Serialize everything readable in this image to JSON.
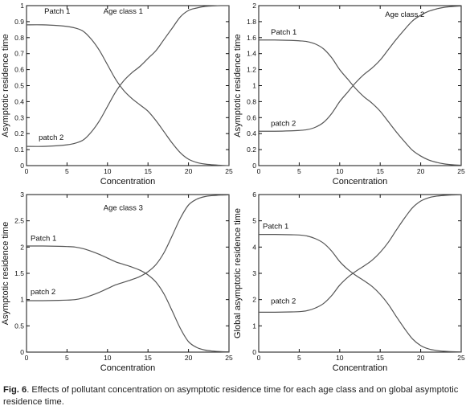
{
  "caption": {
    "label": "Fig. 6",
    "text": ". Effects of pollutant concentration on asymptotic residence time for each age class and on global asymptotic residence time."
  },
  "colors": {
    "line": "#555555",
    "axis": "#111111",
    "background": "#ffffff"
  },
  "chart_data": [
    {
      "type": "line",
      "title": "",
      "xlabel": "Concentration",
      "ylabel": "Asymptotic residence time",
      "xlim": [
        0,
        25
      ],
      "ylim": [
        0,
        1
      ],
      "xticks": [
        "0",
        "5",
        "10",
        "15",
        "20",
        "25"
      ],
      "yticks": [
        "0",
        "0.1",
        "0.2",
        "0.3",
        "0.4",
        "0.5",
        "0.6",
        "0.7",
        "0.8",
        "0.9",
        "1"
      ],
      "annotations": [
        {
          "text": "Patch 1",
          "x": 2.2,
          "y": 0.95
        },
        {
          "text": "Age class 1",
          "x": 9.5,
          "y": 0.95
        },
        {
          "text": "patch 2",
          "x": 1.5,
          "y": 0.16
        }
      ],
      "series": [
        {
          "x": [
            0,
            2,
            4,
            5,
            6,
            7,
            8,
            9,
            10,
            11,
            12,
            13,
            14,
            15,
            16,
            17,
            18,
            19,
            20,
            21,
            22,
            23,
            24,
            25
          ],
          "y": [
            0.88,
            0.88,
            0.875,
            0.87,
            0.86,
            0.84,
            0.79,
            0.72,
            0.63,
            0.54,
            0.47,
            0.42,
            0.38,
            0.34,
            0.28,
            0.21,
            0.14,
            0.08,
            0.04,
            0.02,
            0.01,
            0.005,
            0.002,
            0.0
          ]
        },
        {
          "x": [
            0,
            2,
            4,
            5,
            6,
            7,
            8,
            9,
            10,
            11,
            12,
            13,
            14,
            15,
            16,
            17,
            18,
            19,
            20,
            21,
            22,
            23,
            24,
            25
          ],
          "y": [
            0.12,
            0.12,
            0.125,
            0.13,
            0.14,
            0.16,
            0.21,
            0.28,
            0.37,
            0.46,
            0.53,
            0.58,
            0.62,
            0.67,
            0.72,
            0.79,
            0.86,
            0.93,
            0.97,
            0.985,
            0.995,
            0.998,
            1.0,
            1.0
          ]
        }
      ]
    },
    {
      "type": "line",
      "title": "",
      "xlabel": "Concentration",
      "ylabel": "Asymptotic residence time",
      "xlim": [
        0,
        25
      ],
      "ylim": [
        0,
        2
      ],
      "xticks": [
        "0",
        "5",
        "10",
        "15",
        "20",
        "25"
      ],
      "yticks": [
        "0",
        "0.2",
        "0.4",
        "0.6",
        "0.8",
        "1",
        "1.2",
        "1.4",
        "1.6",
        "1.8",
        "2"
      ],
      "annotations": [
        {
          "text": "Age class 2",
          "x": 15.6,
          "y": 1.86
        },
        {
          "text": "Patch 1",
          "x": 1.5,
          "y": 1.64
        },
        {
          "text": "patch 2",
          "x": 1.5,
          "y": 0.5
        }
      ],
      "series": [
        {
          "x": [
            0,
            2,
            4,
            5,
            6,
            7,
            8,
            9,
            10,
            11,
            12,
            13,
            14,
            15,
            16,
            17,
            18,
            19,
            20,
            21,
            22,
            23,
            24,
            25
          ],
          "y": [
            1.57,
            1.57,
            1.565,
            1.56,
            1.55,
            1.52,
            1.46,
            1.35,
            1.2,
            1.08,
            0.96,
            0.86,
            0.78,
            0.68,
            0.55,
            0.42,
            0.3,
            0.19,
            0.12,
            0.07,
            0.04,
            0.02,
            0.01,
            0.005
          ]
        },
        {
          "x": [
            0,
            2,
            4,
            5,
            6,
            7,
            8,
            9,
            10,
            11,
            12,
            13,
            14,
            15,
            16,
            17,
            18,
            19,
            20,
            21,
            22,
            23,
            24,
            25
          ],
          "y": [
            0.43,
            0.43,
            0.435,
            0.44,
            0.45,
            0.48,
            0.54,
            0.65,
            0.8,
            0.92,
            1.04,
            1.14,
            1.22,
            1.32,
            1.45,
            1.58,
            1.7,
            1.81,
            1.88,
            1.93,
            1.96,
            1.98,
            1.99,
            1.995
          ]
        }
      ]
    },
    {
      "type": "line",
      "title": "",
      "xlabel": "Concentration",
      "ylabel": "Asymptotic residence time",
      "xlim": [
        0,
        25
      ],
      "ylim": [
        0,
        3
      ],
      "xticks": [
        "0",
        "5",
        "10",
        "15",
        "20",
        "25"
      ],
      "yticks": [
        "0",
        "0.5",
        "1",
        "1.5",
        "2",
        "2.5",
        "3"
      ],
      "annotations": [
        {
          "text": "Age class 3",
          "x": 9.5,
          "y": 2.7
        },
        {
          "text": "Patch 1",
          "x": 0.5,
          "y": 2.12
        },
        {
          "text": "patch 2",
          "x": 0.5,
          "y": 1.1
        }
      ],
      "series": [
        {
          "x": [
            0,
            2,
            4,
            5,
            6,
            7,
            8,
            9,
            10,
            11,
            12,
            13,
            14,
            15,
            16,
            17,
            18,
            19,
            20,
            21,
            22,
            23,
            24,
            25
          ],
          "y": [
            2.02,
            2.02,
            2.015,
            2.01,
            2.0,
            1.97,
            1.92,
            1.86,
            1.79,
            1.72,
            1.67,
            1.62,
            1.56,
            1.47,
            1.33,
            1.1,
            0.78,
            0.45,
            0.2,
            0.09,
            0.04,
            0.02,
            0.01,
            0.005
          ]
        },
        {
          "x": [
            0,
            2,
            4,
            5,
            6,
            7,
            8,
            9,
            10,
            11,
            12,
            13,
            14,
            15,
            16,
            17,
            18,
            19,
            20,
            21,
            22,
            23,
            24,
            25
          ],
          "y": [
            0.98,
            0.98,
            0.985,
            0.99,
            1.0,
            1.03,
            1.08,
            1.14,
            1.21,
            1.28,
            1.33,
            1.38,
            1.44,
            1.53,
            1.67,
            1.9,
            2.22,
            2.55,
            2.8,
            2.91,
            2.96,
            2.98,
            2.99,
            2.995
          ]
        }
      ]
    },
    {
      "type": "line",
      "title": "",
      "xlabel": "Concentration",
      "ylabel": "Global asymptotic residence time",
      "xlim": [
        0,
        25
      ],
      "ylim": [
        0,
        6
      ],
      "xticks": [
        "0",
        "5",
        "10",
        "15",
        "20",
        "25"
      ],
      "yticks": [
        "0",
        "1",
        "2",
        "3",
        "4",
        "5",
        "6"
      ],
      "annotations": [
        {
          "text": "Patch 1",
          "x": 0.5,
          "y": 4.7
        },
        {
          "text": "patch 2",
          "x": 1.5,
          "y": 1.85
        }
      ],
      "series": [
        {
          "x": [
            0,
            2,
            4,
            5,
            6,
            7,
            8,
            9,
            10,
            11,
            12,
            13,
            14,
            15,
            16,
            17,
            18,
            19,
            20,
            21,
            22,
            23,
            24,
            25
          ],
          "y": [
            4.48,
            4.48,
            4.47,
            4.46,
            4.42,
            4.32,
            4.15,
            3.85,
            3.45,
            3.15,
            2.92,
            2.72,
            2.5,
            2.2,
            1.82,
            1.35,
            0.9,
            0.5,
            0.25,
            0.12,
            0.06,
            0.03,
            0.015,
            0.007
          ]
        },
        {
          "x": [
            0,
            2,
            4,
            5,
            6,
            7,
            8,
            9,
            10,
            11,
            12,
            13,
            14,
            15,
            16,
            17,
            18,
            19,
            20,
            21,
            22,
            23,
            24,
            25
          ],
          "y": [
            1.52,
            1.52,
            1.53,
            1.54,
            1.58,
            1.68,
            1.85,
            2.15,
            2.55,
            2.85,
            3.08,
            3.28,
            3.5,
            3.8,
            4.18,
            4.65,
            5.1,
            5.5,
            5.75,
            5.88,
            5.94,
            5.97,
            5.985,
            5.993
          ]
        }
      ]
    }
  ]
}
